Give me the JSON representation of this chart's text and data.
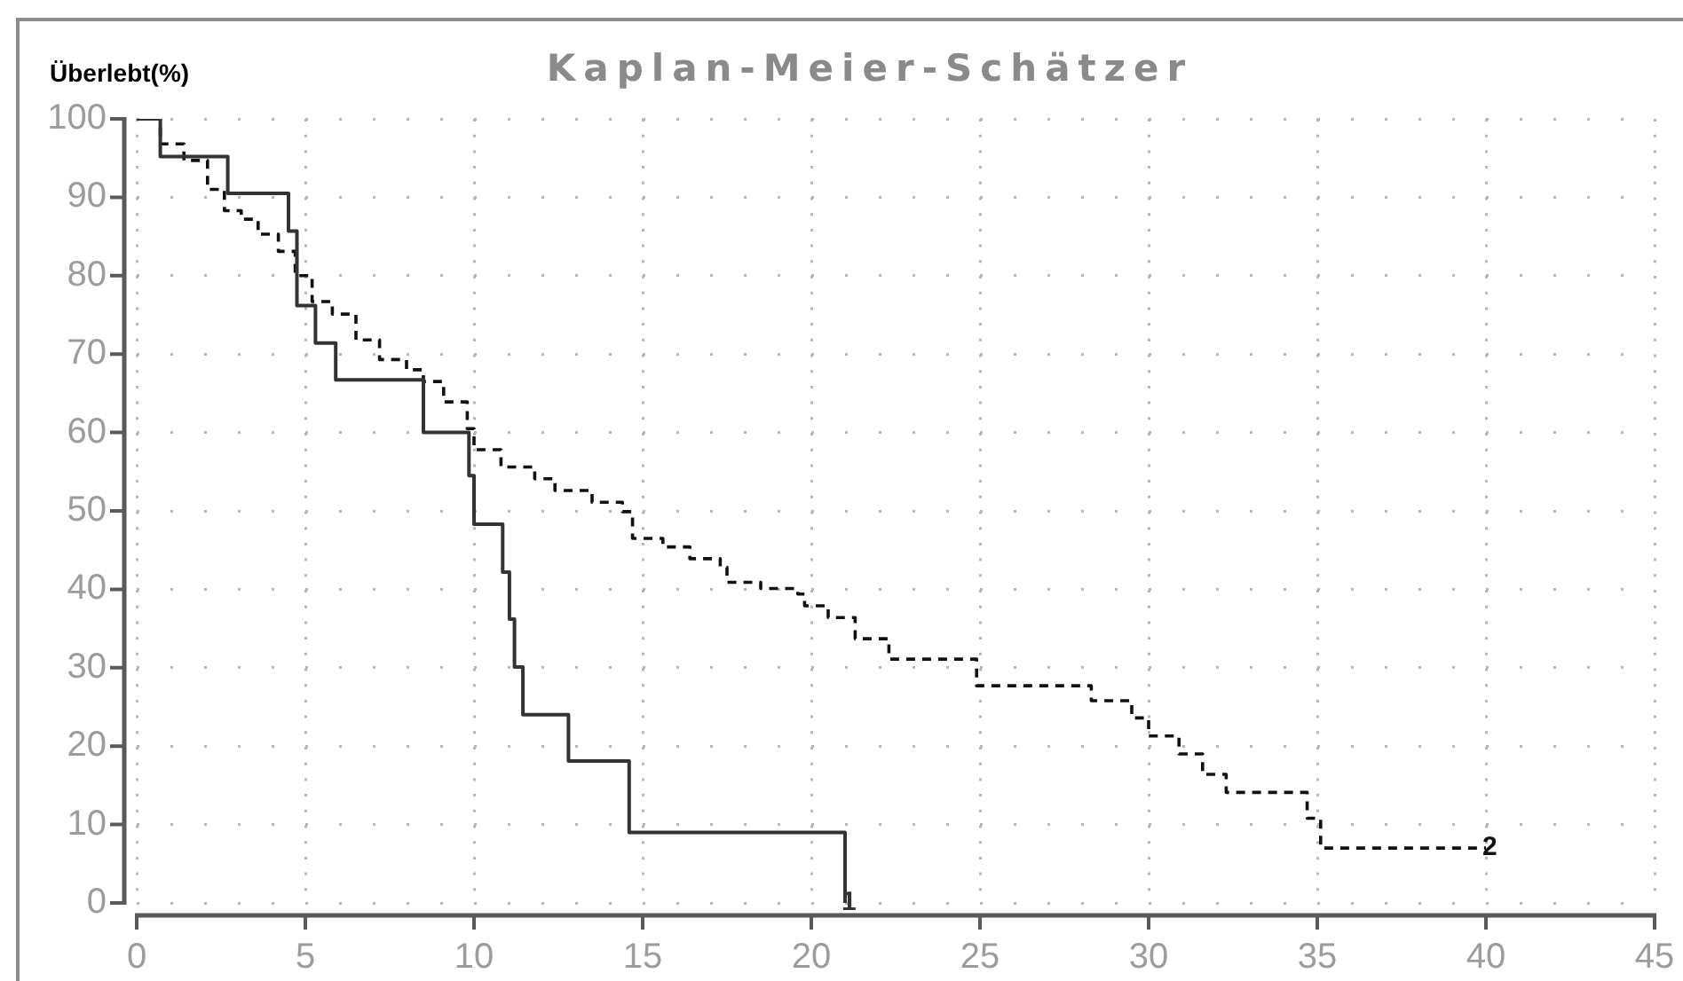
{
  "chart_data": {
    "type": "step",
    "title": "Kaplan-Meier-Schätzer",
    "ylabel": "Überlebt(%)",
    "xlim": [
      0,
      45
    ],
    "xticks": [
      0,
      5,
      10,
      15,
      20,
      25,
      30,
      35,
      40,
      45
    ],
    "ylim": [
      0,
      100
    ],
    "yticks": [
      0,
      10,
      20,
      30,
      40,
      50,
      60,
      70,
      80,
      90,
      100
    ],
    "grid": true,
    "legend": false,
    "series": [
      {
        "name": "1",
        "color": "#333333",
        "line_style": "solid",
        "x": [
          0,
          0.7,
          2.7,
          4.5,
          4.75,
          5.3,
          5.9,
          8.5,
          9.85,
          10,
          10.85,
          11.05,
          11.2,
          11.45,
          12.8,
          14.6,
          21
        ],
        "values": [
          100,
          95.2,
          90.5,
          85.7,
          76.2,
          71.4,
          66.7,
          60,
          54.5,
          48.3,
          42.2,
          36.2,
          30.1,
          24,
          18.1,
          9,
          0
        ]
      },
      {
        "name": "2",
        "color": "#111111",
        "line_style": "dashed",
        "x": [
          0,
          0.7,
          1.4,
          2.1,
          2.6,
          3.1,
          3.6,
          4.2,
          4.7,
          5.2,
          5.8,
          6.5,
          7.2,
          8,
          8.5,
          9.1,
          9.8,
          10,
          10.8,
          11.8,
          12.4,
          13.5,
          14.4,
          14.7,
          15.6,
          16.4,
          17.3,
          17.5,
          18.5,
          19.6,
          19.8,
          20.5,
          21.3,
          22.3,
          24.9,
          28.3,
          29.5,
          30,
          30.9,
          31.6,
          32.3,
          34.7,
          35.1,
          40
        ],
        "values": [
          100,
          96.8,
          94.7,
          91,
          88.3,
          87.2,
          85.3,
          83.1,
          80,
          76.7,
          75.1,
          71.8,
          69.3,
          68,
          66.5,
          63.9,
          60.5,
          57.8,
          55.6,
          54.1,
          52.6,
          51.1,
          49.9,
          46.5,
          45.4,
          43.9,
          42.8,
          40.9,
          40.1,
          39.4,
          37.9,
          36.4,
          33.7,
          31.1,
          27.7,
          25.8,
          23.6,
          21.3,
          19,
          16.4,
          14.1,
          10.8,
          7,
          7
        ]
      }
    ]
  }
}
